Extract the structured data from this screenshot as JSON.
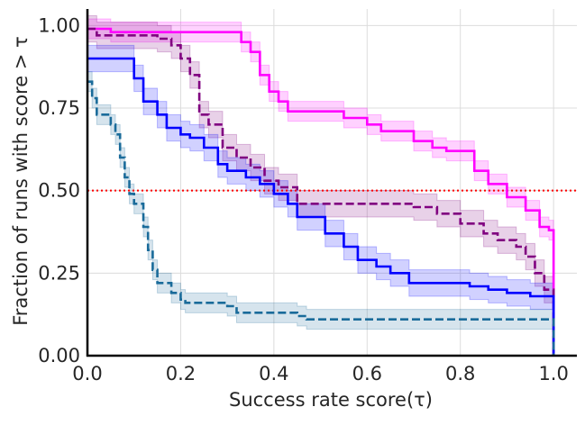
{
  "chart_data": {
    "type": "line",
    "xlabel": "Success rate score(τ)",
    "ylabel": "Fraction of runs with score  > τ",
    "xlim": [
      0.0,
      1.05
    ],
    "ylim": [
      0.0,
      1.05
    ],
    "xticks": [
      "0.0",
      "0.2",
      "0.4",
      "0.6",
      "0.8",
      "1.0"
    ],
    "yticks": [
      "0.00",
      "0.25",
      "0.50",
      "0.75",
      "1.00"
    ],
    "xtick_values": [
      0.0,
      0.2,
      0.4,
      0.6,
      0.8,
      1.0
    ],
    "ytick_values": [
      0.0,
      0.25,
      0.5,
      0.75,
      1.0
    ],
    "grid": true,
    "reference_line": {
      "y": 0.5,
      "color": "#ff0000",
      "style": "dotted"
    },
    "series": [
      {
        "color": "#ff00ff",
        "style": "solid",
        "band_half_width": 0.03,
        "points": [
          [
            0.0,
            0.99
          ],
          [
            0.04,
            0.99
          ],
          [
            0.05,
            0.98
          ],
          [
            0.3,
            0.98
          ],
          [
            0.33,
            0.95
          ],
          [
            0.35,
            0.92
          ],
          [
            0.37,
            0.85
          ],
          [
            0.39,
            0.8
          ],
          [
            0.41,
            0.77
          ],
          [
            0.43,
            0.74
          ],
          [
            0.5,
            0.74
          ],
          [
            0.55,
            0.72
          ],
          [
            0.6,
            0.7
          ],
          [
            0.63,
            0.68
          ],
          [
            0.7,
            0.65
          ],
          [
            0.74,
            0.63
          ],
          [
            0.77,
            0.62
          ],
          [
            0.81,
            0.62
          ],
          [
            0.83,
            0.56
          ],
          [
            0.86,
            0.52
          ],
          [
            0.9,
            0.48
          ],
          [
            0.94,
            0.44
          ],
          [
            0.97,
            0.39
          ],
          [
            0.99,
            0.38
          ],
          [
            1.0,
            0.0
          ]
        ]
      },
      {
        "color": "#800080",
        "style": "dashed",
        "band_half_width": 0.04,
        "points": [
          [
            0.0,
            0.99
          ],
          [
            0.02,
            0.97
          ],
          [
            0.15,
            0.96
          ],
          [
            0.18,
            0.94
          ],
          [
            0.2,
            0.9
          ],
          [
            0.22,
            0.85
          ],
          [
            0.24,
            0.73
          ],
          [
            0.26,
            0.7
          ],
          [
            0.29,
            0.63
          ],
          [
            0.32,
            0.6
          ],
          [
            0.35,
            0.57
          ],
          [
            0.38,
            0.53
          ],
          [
            0.41,
            0.51
          ],
          [
            0.45,
            0.46
          ],
          [
            0.65,
            0.46
          ],
          [
            0.7,
            0.45
          ],
          [
            0.75,
            0.43
          ],
          [
            0.8,
            0.4
          ],
          [
            0.85,
            0.37
          ],
          [
            0.88,
            0.35
          ],
          [
            0.92,
            0.33
          ],
          [
            0.94,
            0.3
          ],
          [
            0.96,
            0.25
          ],
          [
            0.98,
            0.2
          ],
          [
            1.0,
            0.0
          ]
        ]
      },
      {
        "color": "#0000ff",
        "style": "solid",
        "band_half_width": 0.04,
        "points": [
          [
            0.0,
            0.9
          ],
          [
            0.08,
            0.9
          ],
          [
            0.1,
            0.84
          ],
          [
            0.12,
            0.77
          ],
          [
            0.15,
            0.73
          ],
          [
            0.17,
            0.69
          ],
          [
            0.2,
            0.67
          ],
          [
            0.22,
            0.66
          ],
          [
            0.25,
            0.63
          ],
          [
            0.28,
            0.58
          ],
          [
            0.3,
            0.56
          ],
          [
            0.34,
            0.54
          ],
          [
            0.37,
            0.52
          ],
          [
            0.4,
            0.49
          ],
          [
            0.43,
            0.46
          ],
          [
            0.45,
            0.42
          ],
          [
            0.49,
            0.42
          ],
          [
            0.51,
            0.37
          ],
          [
            0.55,
            0.33
          ],
          [
            0.58,
            0.29
          ],
          [
            0.62,
            0.27
          ],
          [
            0.65,
            0.25
          ],
          [
            0.69,
            0.22
          ],
          [
            0.75,
            0.22
          ],
          [
            0.82,
            0.21
          ],
          [
            0.86,
            0.2
          ],
          [
            0.9,
            0.19
          ],
          [
            0.95,
            0.18
          ],
          [
            0.99,
            0.18
          ],
          [
            1.0,
            0.0
          ]
        ]
      },
      {
        "color": "#1a6b9a",
        "style": "dashed",
        "band_half_width": 0.03,
        "points": [
          [
            0.0,
            0.83
          ],
          [
            0.01,
            0.78
          ],
          [
            0.02,
            0.73
          ],
          [
            0.05,
            0.7
          ],
          [
            0.06,
            0.67
          ],
          [
            0.07,
            0.6
          ],
          [
            0.08,
            0.54
          ],
          [
            0.09,
            0.49
          ],
          [
            0.1,
            0.46
          ],
          [
            0.12,
            0.39
          ],
          [
            0.13,
            0.32
          ],
          [
            0.14,
            0.26
          ],
          [
            0.15,
            0.22
          ],
          [
            0.18,
            0.19
          ],
          [
            0.2,
            0.17
          ],
          [
            0.21,
            0.16
          ],
          [
            0.3,
            0.15
          ],
          [
            0.32,
            0.13
          ],
          [
            0.45,
            0.12
          ],
          [
            0.47,
            0.11
          ],
          [
            0.99,
            0.11
          ],
          [
            1.0,
            0.0
          ]
        ]
      }
    ]
  }
}
